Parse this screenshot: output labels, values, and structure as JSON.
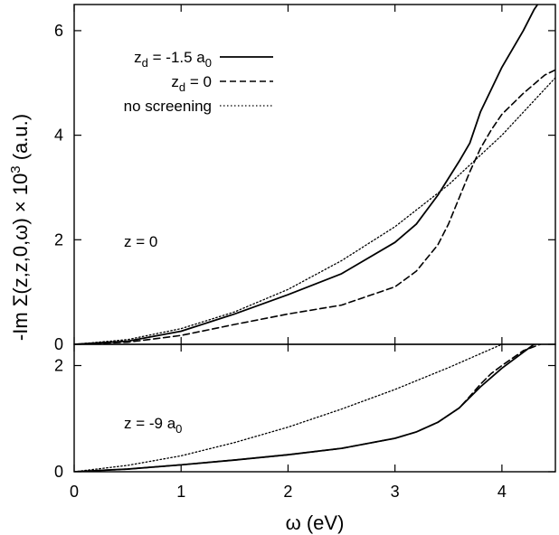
{
  "chart_data": {
    "type": "line",
    "xlabel": "ω (eV)",
    "ylabel_parts": {
      "prefix": "-Im Σ(z,z,0,ω) × 10",
      "exponent": "3",
      "suffix": " (a.u.)"
    },
    "xlim": [
      0,
      4.5
    ],
    "x_ticks": [
      "0",
      "1",
      "2",
      "3",
      "4"
    ],
    "grid": false,
    "legend_position": "top-left",
    "legend_entries": [
      {
        "id": "solid",
        "base": "z",
        "sub": "d",
        "rest": " = -1.5 a",
        "sub2": "0",
        "line_style": "solid"
      },
      {
        "id": "dashed",
        "base": "z",
        "sub": "d",
        "rest": " = 0",
        "sub2": "",
        "line_style": "dashed"
      },
      {
        "id": "dotted",
        "base": "no screening",
        "sub": "",
        "rest": "",
        "sub2": "",
        "line_style": "dotted"
      }
    ],
    "panels": [
      {
        "id": "top",
        "label_base": "z = 0",
        "label_sub": "",
        "ylim": [
          0,
          6.5
        ],
        "y_ticks": [
          "0",
          "2",
          "4",
          "6"
        ],
        "series": [
          {
            "style": "solid",
            "x": [
              0,
              0.5,
              1,
              1.5,
              2,
              2.5,
              3,
              3.2,
              3.4,
              3.6,
              3.7,
              3.8,
              4.0,
              4.2,
              4.3,
              4.5
            ],
            "y": [
              0,
              0.06,
              0.25,
              0.58,
              0.95,
              1.35,
              1.95,
              2.3,
              2.85,
              3.5,
              3.85,
              4.45,
              5.3,
              6.0,
              6.4,
              7.0
            ]
          },
          {
            "style": "dashed",
            "x": [
              0,
              0.5,
              1,
              1.5,
              2,
              2.5,
              3,
              3.2,
              3.4,
              3.5,
              3.6,
              3.7,
              3.8,
              3.9,
              4.0,
              4.2,
              4.4,
              4.5
            ],
            "y": [
              0,
              0.04,
              0.17,
              0.38,
              0.58,
              0.75,
              1.1,
              1.4,
              1.9,
              2.3,
              2.8,
              3.3,
              3.75,
              4.1,
              4.4,
              4.8,
              5.15,
              5.25
            ]
          },
          {
            "style": "dotted",
            "x": [
              0,
              0.5,
              1,
              1.5,
              2,
              2.5,
              3,
              3.5,
              4,
              4.5
            ],
            "y": [
              0,
              0.09,
              0.3,
              0.62,
              1.05,
              1.6,
              2.25,
              3.05,
              4.0,
              5.1
            ]
          }
        ]
      },
      {
        "id": "bottom",
        "label_base": "z = -9 a",
        "label_sub": "0",
        "ylim": [
          0,
          2.4
        ],
        "y_ticks": [
          "0",
          "2"
        ],
        "series": [
          {
            "style": "solid",
            "x": [
              0,
              0.5,
              1,
              1.5,
              2,
              2.5,
              3,
              3.2,
              3.4,
              3.6,
              3.7,
              3.8,
              4.0,
              4.2,
              4.3,
              4.5
            ],
            "y": [
              0,
              0.05,
              0.13,
              0.22,
              0.32,
              0.44,
              0.63,
              0.75,
              0.93,
              1.2,
              1.4,
              1.6,
              1.95,
              2.25,
              2.4,
              2.45
            ]
          },
          {
            "style": "dashed",
            "x": [
              0,
              0.5,
              1,
              1.5,
              2,
              2.5,
              3,
              3.2,
              3.4,
              3.6,
              3.7,
              3.8,
              3.9,
              4.0,
              4.2,
              4.4,
              4.5
            ],
            "y": [
              0,
              0.05,
              0.13,
              0.22,
              0.32,
              0.44,
              0.63,
              0.75,
              0.93,
              1.2,
              1.42,
              1.65,
              1.85,
              2.0,
              2.28,
              2.43,
              2.46
            ]
          },
          {
            "style": "dotted",
            "x": [
              0,
              0.5,
              1,
              1.5,
              2,
              2.5,
              3,
              3.5,
              4,
              4.5
            ],
            "y": [
              0,
              0.12,
              0.3,
              0.55,
              0.84,
              1.18,
              1.55,
              1.96,
              2.4,
              2.88
            ]
          }
        ]
      }
    ]
  }
}
